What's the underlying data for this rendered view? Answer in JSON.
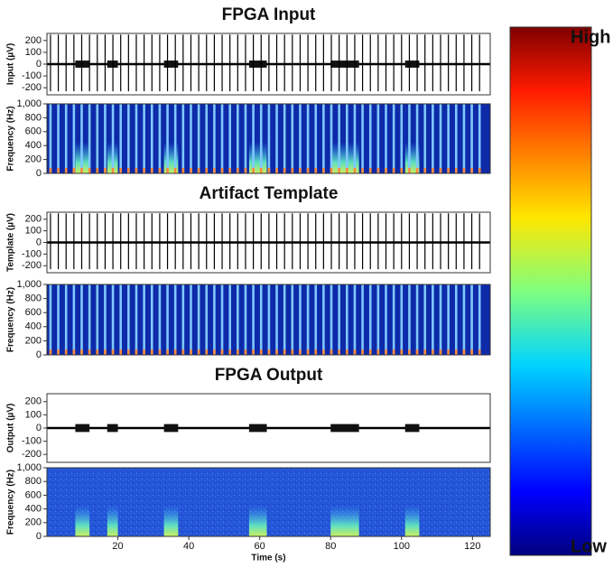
{
  "chart_data": [
    {
      "type": "trace",
      "title": "FPGA Input",
      "ylabel": "Input (µV)",
      "xlim": [
        0,
        125
      ],
      "ylim": [
        -260,
        260
      ],
      "yticks": [
        -200,
        -100,
        0,
        100,
        200
      ],
      "x": [
        1.0,
        3.2,
        5.4,
        7.6,
        9.8,
        12.0,
        14.2,
        16.4,
        18.6,
        20.8,
        23.0,
        25.2,
        27.4,
        29.6,
        31.8,
        34.0,
        36.2,
        38.4,
        40.6,
        42.8,
        45.0,
        47.2,
        49.4,
        51.6,
        53.8,
        56.0,
        58.2,
        60.4,
        62.6,
        64.8,
        67.0,
        69.2,
        71.4,
        73.6,
        75.8,
        78.0,
        80.2,
        82.4,
        84.6,
        86.8,
        89.0,
        91.2,
        93.4,
        95.6,
        97.8,
        100.0,
        102.2,
        104.4,
        106.6,
        108.8,
        111.0,
        113.2,
        115.4,
        117.6,
        119.8,
        122.0
      ],
      "spike_high": 250,
      "spike_low": -230,
      "bursts": [
        [
          8,
          12
        ],
        [
          17,
          20
        ],
        [
          33,
          37
        ],
        [
          57,
          62
        ],
        [
          80,
          88
        ],
        [
          101,
          105
        ]
      ],
      "burst_amplitude": 30
    },
    {
      "type": "spectrogram",
      "ylabel": "Frequency (Hz)",
      "xlim": [
        0,
        125
      ],
      "ylim": [
        0,
        1000
      ],
      "yticks": [
        0,
        200,
        400,
        600,
        800,
        {
          "value": 1000,
          "label": "1,000"
        }
      ],
      "x": [
        1.0,
        3.2,
        5.4,
        7.6,
        9.8,
        12.0,
        14.2,
        16.4,
        18.6,
        20.8,
        23.0,
        25.2,
        27.4,
        29.6,
        31.8,
        34.0,
        36.2,
        38.4,
        40.6,
        42.8,
        45.0,
        47.2,
        49.4,
        51.6,
        53.8,
        56.0,
        58.2,
        60.4,
        62.6,
        64.8,
        67.0,
        69.2,
        71.4,
        73.6,
        75.8,
        78.0,
        80.2,
        82.4,
        84.6,
        86.8,
        89.0,
        91.2,
        93.4,
        95.6,
        97.8,
        100.0,
        102.2,
        104.4,
        106.6,
        108.8,
        111.0,
        113.2,
        115.4,
        117.6,
        119.8,
        122.0
      ],
      "bursts": [
        [
          8,
          12
        ],
        [
          17,
          20
        ],
        [
          33,
          37
        ],
        [
          57,
          62
        ],
        [
          80,
          88
        ],
        [
          101,
          105
        ]
      ],
      "burst_fmax": 450
    },
    {
      "type": "trace",
      "title": "Artifact Template",
      "ylabel": "Template (µV)",
      "xlim": [
        0,
        125
      ],
      "ylim": [
        -260,
        260
      ],
      "yticks": [
        -200,
        -100,
        0,
        100,
        200
      ],
      "x": [
        1.0,
        3.2,
        5.4,
        7.6,
        9.8,
        12.0,
        14.2,
        16.4,
        18.6,
        20.8,
        23.0,
        25.2,
        27.4,
        29.6,
        31.8,
        34.0,
        36.2,
        38.4,
        40.6,
        42.8,
        45.0,
        47.2,
        49.4,
        51.6,
        53.8,
        56.0,
        58.2,
        60.4,
        62.6,
        64.8,
        67.0,
        69.2,
        71.4,
        73.6,
        75.8,
        78.0,
        80.2,
        82.4,
        84.6,
        86.8,
        89.0,
        91.2,
        93.4,
        95.6,
        97.8,
        100.0,
        102.2,
        104.4,
        106.6,
        108.8,
        111.0,
        113.2,
        115.4,
        117.6,
        119.8,
        122.0
      ],
      "spike_high": 250,
      "spike_low": -230,
      "bursts": [],
      "burst_amplitude": 0
    },
    {
      "type": "spectrogram",
      "ylabel": "Frequency (Hz)",
      "xlim": [
        0,
        125
      ],
      "ylim": [
        0,
        1000
      ],
      "yticks": [
        0,
        200,
        400,
        600,
        800,
        {
          "value": 1000,
          "label": "1,000"
        }
      ],
      "x": [
        1.0,
        3.2,
        5.4,
        7.6,
        9.8,
        12.0,
        14.2,
        16.4,
        18.6,
        20.8,
        23.0,
        25.2,
        27.4,
        29.6,
        31.8,
        34.0,
        36.2,
        38.4,
        40.6,
        42.8,
        45.0,
        47.2,
        49.4,
        51.6,
        53.8,
        56.0,
        58.2,
        60.4,
        62.6,
        64.8,
        67.0,
        69.2,
        71.4,
        73.6,
        75.8,
        78.0,
        80.2,
        82.4,
        84.6,
        86.8,
        89.0,
        91.2,
        93.4,
        95.6,
        97.8,
        100.0,
        102.2,
        104.4,
        106.6,
        108.8,
        111.0,
        113.2,
        115.4,
        117.6,
        119.8,
        122.0
      ],
      "bursts": [],
      "burst_fmax": 0
    },
    {
      "type": "trace",
      "title": "FPGA Output",
      "ylabel": "Output (µV)",
      "xlim": [
        0,
        125
      ],
      "ylim": [
        -260,
        260
      ],
      "yticks": [
        -200,
        -100,
        0,
        100,
        200
      ],
      "x": [],
      "spike_high": 60,
      "spike_low": -40,
      "bursts": [
        [
          8,
          12
        ],
        [
          17,
          20
        ],
        [
          33,
          37
        ],
        [
          57,
          62
        ],
        [
          80,
          88
        ],
        [
          101,
          105
        ]
      ],
      "burst_amplitude": 30
    },
    {
      "type": "spectrogram",
      "ylabel": "Frequency (Hz)",
      "xlabel": "Time (s)",
      "xlim": [
        0,
        125
      ],
      "ylim": [
        0,
        1000
      ],
      "yticks": [
        0,
        200,
        400,
        600,
        800,
        {
          "value": 1000,
          "label": "1,000"
        }
      ],
      "xticks": [
        20,
        40,
        60,
        80,
        100,
        120
      ],
      "x": [],
      "bursts": [
        [
          8,
          12
        ],
        [
          17,
          20
        ],
        [
          33,
          37
        ],
        [
          57,
          62
        ],
        [
          80,
          88
        ],
        [
          101,
          105
        ]
      ],
      "burst_fmax": 450
    }
  ],
  "colorbar": {
    "high": "High",
    "low": "Low"
  }
}
